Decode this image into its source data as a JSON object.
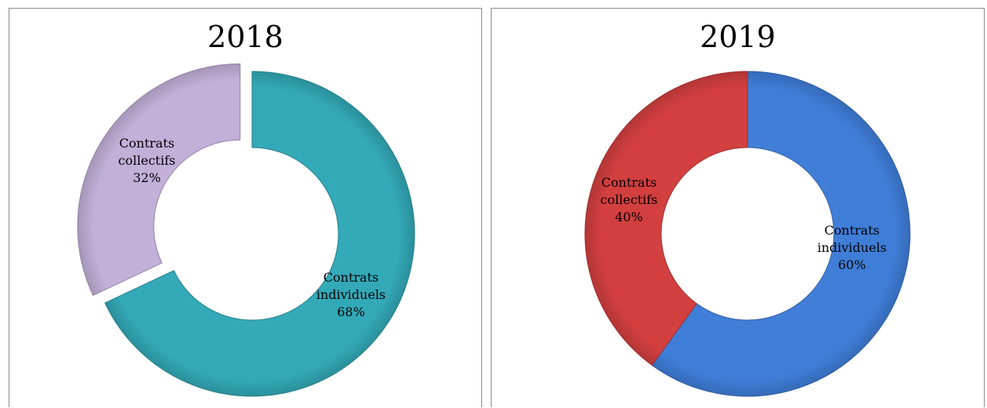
{
  "chart_data": [
    {
      "type": "pie",
      "title": "2018",
      "slices": [
        {
          "label": [
            "Contrats",
            "individuels",
            "68%"
          ],
          "name": "Contrats individuels",
          "value": 68,
          "color": "#33a9b8",
          "exploded": false
        },
        {
          "label": [
            "Contrats",
            "collectifs",
            "32%"
          ],
          "name": "Contrats collectifs",
          "value": 32,
          "color": "#c2b0d9",
          "exploded": true
        }
      ]
    },
    {
      "type": "pie",
      "title": "2019",
      "slices": [
        {
          "label": [
            "Contrats",
            "individuels",
            "60%"
          ],
          "name": "Contrats individuels",
          "value": 60,
          "color": "#3f7ed8",
          "exploded": false
        },
        {
          "label": [
            "Contrats",
            "collectifs",
            "40%"
          ],
          "name": "Contrats collectifs",
          "value": 40,
          "color": "#d33f3f",
          "exploded": false
        }
      ]
    }
  ]
}
